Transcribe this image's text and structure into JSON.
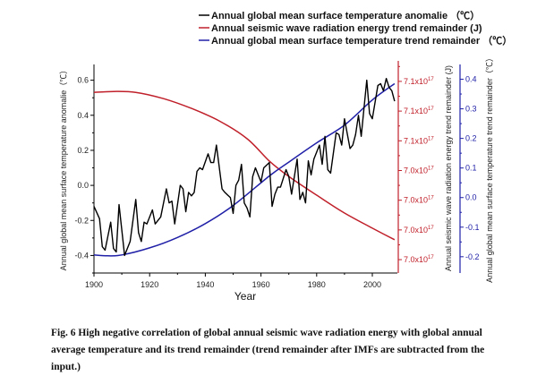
{
  "chart_data": {
    "type": "line",
    "title": "",
    "xlabel": "Year",
    "xlim": [
      1900,
      2009
    ],
    "xticks": [
      1900,
      1920,
      1940,
      1960,
      1980,
      2000
    ],
    "xtick_labels": [
      "1900",
      "1920",
      "1940",
      "1960",
      "1980",
      "2000"
    ],
    "grid": false,
    "legend_position": "top-right",
    "axes": {
      "left": {
        "label": "Annual global mean surface temperature anomalie（℃）",
        "ylim": [
          -0.5,
          0.69
        ],
        "ticks": [
          -0.4,
          -0.2,
          0.0,
          0.2,
          0.4,
          0.6
        ],
        "tick_labels": [
          "-0.4",
          "-0.2",
          "0.0",
          "0.2",
          "0.4",
          "0.6"
        ],
        "color": "#000000"
      },
      "right_red": {
        "label": "Annual seismic wave radiation energy trend remainder  (J)",
        "ylim": [
          7.0405,
          7.1107
        ],
        "ticks": [
          7.045,
          7.055,
          7.065,
          7.075,
          7.085,
          7.095,
          7.105
        ],
        "tick_labels": [
          "7.0x10",
          "7.0x10",
          "7.0x10",
          "7.0x10",
          "7.1x10",
          "7.1x10",
          "7.1x10"
        ],
        "tick_exponent": "17",
        "unit_scale": "1e17",
        "color": "#c0202a"
      },
      "right_blue": {
        "label": "Annual global mean surface temperature trend remainder（℃）",
        "ylim": [
          -0.255,
          0.45
        ],
        "ticks": [
          -0.2,
          -0.1,
          0.0,
          0.1,
          0.2,
          0.3,
          0.4
        ],
        "tick_labels": [
          "-0.2",
          "-0.1",
          "0.0",
          "0.1",
          "0.2",
          "0.3",
          "0.4"
        ],
        "color": "#2020a8"
      }
    },
    "series": [
      {
        "name": "Annual global mean surface temperature anomalie （℃）",
        "axis": "left",
        "color": "#000000",
        "x": [
          1900,
          1902,
          1903,
          1904,
          1906,
          1907,
          1908,
          1909,
          1911,
          1913,
          1915,
          1916,
          1917,
          1918,
          1919,
          1921,
          1922,
          1924,
          1926,
          1927,
          1928,
          1929,
          1931,
          1932,
          1933,
          1934,
          1935,
          1936,
          1937,
          1938,
          1939,
          1941,
          1942,
          1943,
          1944,
          1946,
          1947,
          1949,
          1950,
          1951,
          1952,
          1953,
          1954,
          1955,
          1956,
          1957,
          1958,
          1959,
          1960,
          1961,
          1963,
          1964,
          1965,
          1966,
          1967,
          1969,
          1970,
          1971,
          1973,
          1974,
          1975,
          1976,
          1977,
          1978,
          1979,
          1981,
          1982,
          1983,
          1984,
          1985,
          1987,
          1988,
          1989,
          1990,
          1992,
          1993,
          1994,
          1995,
          1996,
          1998,
          1999,
          2000,
          2002,
          2003,
          2004,
          2005,
          2006,
          2007,
          2008
        ],
        "y": [
          -0.12,
          -0.19,
          -0.35,
          -0.37,
          -0.21,
          -0.36,
          -0.38,
          -0.11,
          -0.4,
          -0.32,
          -0.08,
          -0.27,
          -0.32,
          -0.21,
          -0.22,
          -0.14,
          -0.22,
          -0.18,
          -0.02,
          -0.1,
          -0.09,
          -0.22,
          0.0,
          -0.02,
          -0.15,
          -0.04,
          -0.06,
          -0.04,
          0.08,
          0.1,
          0.09,
          0.18,
          0.13,
          0.13,
          0.23,
          -0.02,
          -0.04,
          -0.07,
          -0.16,
          0.0,
          0.03,
          0.12,
          -0.1,
          -0.13,
          -0.18,
          0.05,
          0.1,
          0.06,
          0.02,
          0.1,
          0.13,
          -0.12,
          -0.05,
          -0.01,
          -0.01,
          0.09,
          0.05,
          -0.05,
          0.15,
          -0.08,
          -0.04,
          -0.1,
          0.14,
          0.06,
          0.15,
          0.23,
          0.12,
          0.28,
          0.09,
          0.07,
          0.3,
          0.29,
          0.23,
          0.38,
          0.21,
          0.23,
          0.29,
          0.4,
          0.28,
          0.6,
          0.41,
          0.38,
          0.57,
          0.58,
          0.54,
          0.61,
          0.56,
          0.54,
          0.48
        ]
      },
      {
        "name": "Annual seismic wave radiation energy trend remainder  (J)",
        "axis": "right_red",
        "color": "#c0202a",
        "unit_scale": "1e17",
        "x": [
          1900,
          1907,
          1915,
          1925,
          1935,
          1945,
          1955,
          1963,
          1970,
          1980,
          1990,
          2000,
          2008
        ],
        "y": [
          7.1013,
          7.1016,
          7.1013,
          7.0992,
          7.0959,
          7.0917,
          7.0857,
          7.0782,
          7.073,
          7.0667,
          7.0607,
          7.0556,
          7.0517
        ]
      },
      {
        "name": "Annual global mean surface temperature trend remainder （℃）",
        "axis": "right_blue",
        "color": "#2020a8",
        "x": [
          1900,
          1905,
          1910,
          1920,
          1930,
          1940,
          1950,
          1963,
          1970,
          1980,
          1990,
          2000,
          2008
        ],
        "y": [
          -0.194,
          -0.197,
          -0.194,
          -0.17,
          -0.135,
          -0.088,
          -0.027,
          0.073,
          0.12,
          0.185,
          0.245,
          0.33,
          0.385
        ]
      }
    ]
  },
  "caption": "Fig. 6 High negative correlation of global annual seismic wave radiation energy with global annual average temperature and its trend remainder (trend remainder after IMFs are subtracted from the input.)"
}
